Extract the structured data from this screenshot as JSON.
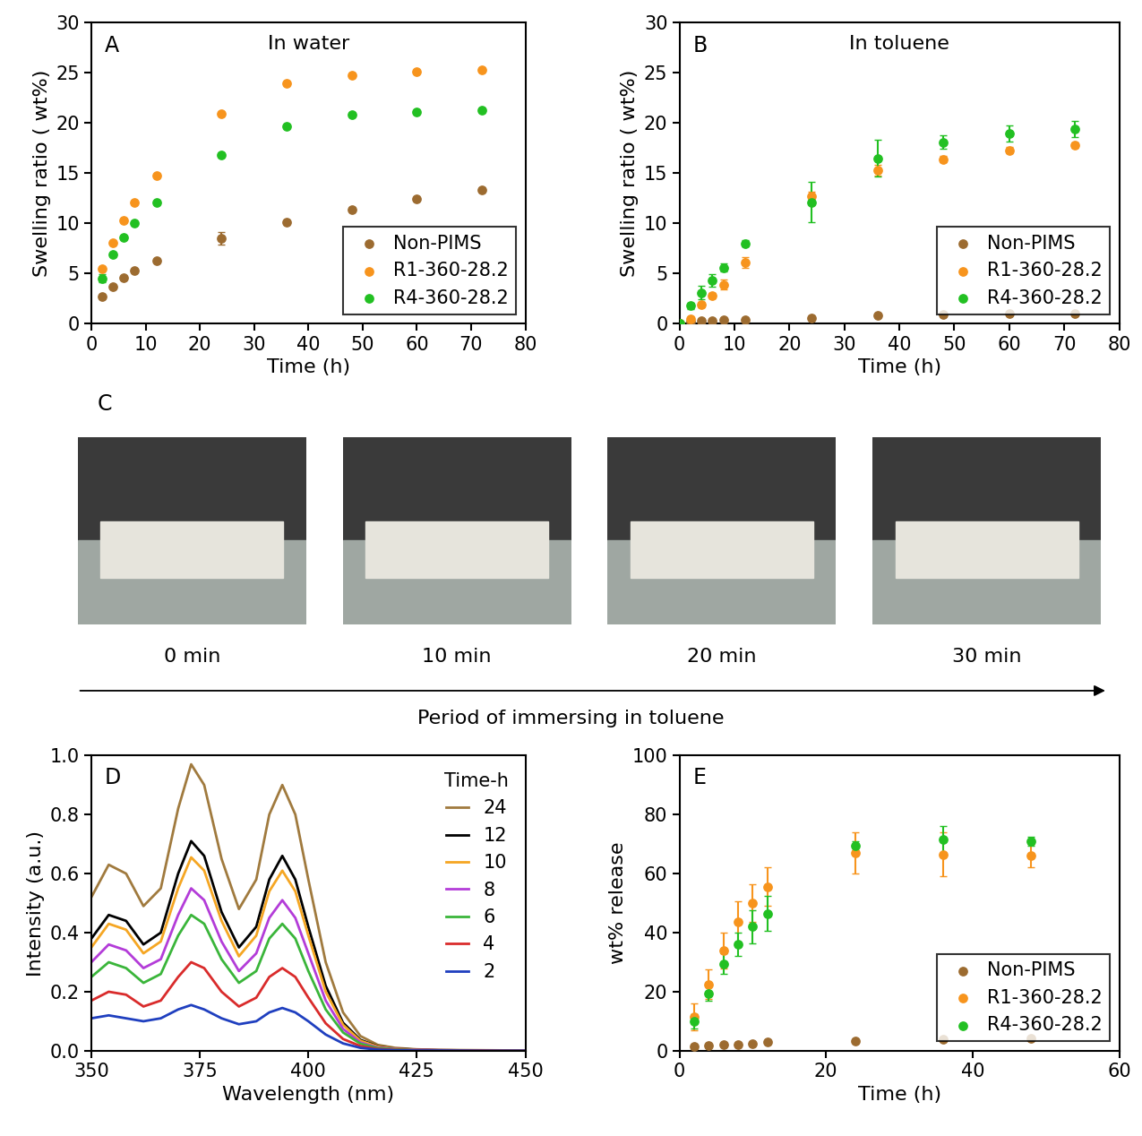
{
  "chart_data": [
    {
      "type": "scatter",
      "label": "A",
      "title": "In water",
      "x_label": "Time (h)",
      "y_label": "Swelling ratio ( wt%)",
      "x": [
        2,
        4,
        6,
        8,
        12,
        24,
        36,
        48,
        60,
        72
      ],
      "series": [
        {
          "name": "Non-PIMS",
          "color": "#9c6b30",
          "marker": "o",
          "values": [
            2.7,
            3.7,
            4.6,
            5.3,
            6.3,
            8.5,
            10.1,
            11.4,
            12.4,
            13.3
          ],
          "errors": [
            0,
            0,
            0,
            0,
            0,
            0.6,
            0,
            0,
            0,
            0
          ]
        },
        {
          "name": "R1-360-28.2",
          "color": "#f7941d",
          "marker": "o",
          "values": [
            5.5,
            8.1,
            10.3,
            12.1,
            14.8,
            20.9,
            24.0,
            24.8,
            25.1,
            25.3
          ],
          "errors": [
            0,
            0,
            0,
            0,
            0,
            0,
            0,
            0,
            0,
            0
          ]
        },
        {
          "name": "R4-360-28.2",
          "color": "#22c022",
          "marker": "o",
          "values": [
            4.5,
            6.9,
            8.6,
            10.0,
            12.1,
            16.8,
            19.7,
            20.8,
            21.1,
            21.3
          ],
          "errors": [
            0.4,
            0,
            0,
            0,
            0,
            0,
            0,
            0,
            0,
            0
          ]
        }
      ],
      "xlim": [
        0,
        80
      ],
      "xticks": [
        0,
        10,
        20,
        30,
        40,
        50,
        60,
        70,
        80
      ],
      "ylim": [
        0,
        30
      ],
      "yticks": [
        0,
        5,
        10,
        15,
        20,
        25,
        30
      ],
      "legend": "lower right"
    },
    {
      "type": "scatter",
      "label": "B",
      "title": "In toluene",
      "x_label": "Time (h)",
      "y_label": "Swelling ratio ( wt%)",
      "x": [
        0,
        2,
        4,
        6,
        8,
        12,
        24,
        36,
        48,
        60,
        72
      ],
      "series": [
        {
          "name": "Non-PIMS",
          "color": "#9c6b30",
          "marker": "o",
          "values": [
            0,
            0.2,
            0.3,
            0.3,
            0.35,
            0.4,
            0.6,
            0.8,
            0.9,
            1.0,
            1.0
          ],
          "errors": [
            0,
            0,
            0,
            0,
            0,
            0,
            0,
            0,
            0,
            0,
            0
          ]
        },
        {
          "name": "R1-360-28.2",
          "color": "#f7941d",
          "marker": "o",
          "values": [
            0,
            0.5,
            1.9,
            2.8,
            3.9,
            6.1,
            12.7,
            15.3,
            16.4,
            17.3,
            17.8
          ],
          "errors": [
            0,
            0.2,
            0.3,
            0.3,
            0.5,
            0.5,
            0.5,
            0.5,
            0.3,
            0.3,
            0.3
          ]
        },
        {
          "name": "R4-360-28.2",
          "color": "#22c022",
          "marker": "o",
          "values": [
            0,
            1.8,
            3.1,
            4.3,
            5.6,
            8.0,
            12.1,
            16.5,
            18.1,
            19.0,
            19.4
          ],
          "errors": [
            0,
            0.3,
            0.7,
            0.6,
            0.4,
            0.3,
            2.0,
            1.8,
            0.7,
            0.8,
            0.8
          ]
        }
      ],
      "xlim": [
        0,
        80
      ],
      "xticks": [
        0,
        10,
        20,
        30,
        40,
        50,
        60,
        70,
        80
      ],
      "ylim": [
        0,
        30
      ],
      "yticks": [
        0,
        5,
        10,
        15,
        20,
        25,
        30
      ],
      "legend": "lower right"
    },
    {
      "type": "line",
      "label": "D",
      "x_label": "Wavelength (nm)",
      "y_label": "Intensity (a.u.)",
      "legend_title": "Time-h",
      "x": [
        350,
        354,
        358,
        362,
        366,
        370,
        373,
        376,
        380,
        384,
        388,
        391,
        394,
        397,
        400,
        404,
        408,
        412,
        416,
        420,
        425,
        430,
        440,
        450
      ],
      "series": [
        {
          "name": "24",
          "color": "#a07a3e",
          "values": [
            0.52,
            0.63,
            0.6,
            0.49,
            0.55,
            0.82,
            0.97,
            0.9,
            0.65,
            0.48,
            0.58,
            0.8,
            0.9,
            0.8,
            0.58,
            0.3,
            0.13,
            0.05,
            0.02,
            0.01,
            0.005,
            0.003,
            0.002,
            0.001
          ]
        },
        {
          "name": "12",
          "color": "#000000",
          "values": [
            0.38,
            0.46,
            0.44,
            0.36,
            0.4,
            0.6,
            0.71,
            0.66,
            0.47,
            0.35,
            0.42,
            0.58,
            0.66,
            0.58,
            0.42,
            0.22,
            0.095,
            0.037,
            0.015,
            0.007,
            0.004,
            0.002,
            0.001,
            0.001
          ]
        },
        {
          "name": "10",
          "color": "#f5a623",
          "values": [
            0.35,
            0.43,
            0.41,
            0.33,
            0.37,
            0.55,
            0.655,
            0.61,
            0.44,
            0.32,
            0.39,
            0.54,
            0.61,
            0.54,
            0.39,
            0.2,
            0.088,
            0.034,
            0.014,
            0.007,
            0.003,
            0.002,
            0.001,
            0.001
          ]
        },
        {
          "name": "8",
          "color": "#b33cd8",
          "values": [
            0.3,
            0.36,
            0.34,
            0.28,
            0.31,
            0.46,
            0.55,
            0.51,
            0.37,
            0.27,
            0.33,
            0.45,
            0.51,
            0.45,
            0.33,
            0.17,
            0.074,
            0.028,
            0.011,
            0.006,
            0.003,
            0.002,
            0.001,
            0.001
          ]
        },
        {
          "name": "6",
          "color": "#3ab53a",
          "values": [
            0.25,
            0.3,
            0.28,
            0.23,
            0.26,
            0.39,
            0.46,
            0.43,
            0.31,
            0.23,
            0.27,
            0.38,
            0.43,
            0.38,
            0.27,
            0.14,
            0.062,
            0.024,
            0.009,
            0.005,
            0.002,
            0.001,
            0.001,
            0.0
          ]
        },
        {
          "name": "4",
          "color": "#d92b2b",
          "values": [
            0.17,
            0.2,
            0.19,
            0.15,
            0.17,
            0.25,
            0.3,
            0.28,
            0.2,
            0.15,
            0.18,
            0.25,
            0.28,
            0.25,
            0.18,
            0.093,
            0.04,
            0.016,
            0.006,
            0.003,
            0.002,
            0.001,
            0.001,
            0.0
          ]
        },
        {
          "name": "2",
          "color": "#1f3fbf",
          "values": [
            0.11,
            0.12,
            0.11,
            0.1,
            0.11,
            0.14,
            0.155,
            0.14,
            0.11,
            0.09,
            0.1,
            0.13,
            0.145,
            0.13,
            0.1,
            0.055,
            0.025,
            0.01,
            0.004,
            0.002,
            0.001,
            0.001,
            0.0,
            0.0
          ]
        }
      ],
      "xlim": [
        350,
        450
      ],
      "xticks": [
        350,
        375,
        400,
        425,
        450
      ],
      "ylim": [
        0.0,
        1.0
      ],
      "yticks": [
        0.0,
        0.2,
        0.4,
        0.6,
        0.8,
        1.0
      ],
      "legend": "upper right"
    },
    {
      "type": "scatter",
      "label": "E",
      "x_label": "Time (h)",
      "y_label": "wt% release",
      "x": [
        2,
        4,
        6,
        8,
        10,
        12,
        24,
        36,
        48
      ],
      "series": [
        {
          "name": "Non-PIMS",
          "color": "#9c6b30",
          "marker": "o",
          "values": [
            1.5,
            1.8,
            2.0,
            2.2,
            2.5,
            3.0,
            3.3,
            3.8,
            4.2
          ],
          "errors": [
            0.3,
            0.3,
            0.3,
            0.3,
            0.3,
            0.3,
            0.3,
            0.3,
            0.3
          ]
        },
        {
          "name": "R1-360-28.2",
          "color": "#f7941d",
          "marker": "o",
          "values": [
            11.5,
            22.5,
            34,
            43.5,
            50,
            55.5,
            67,
            66.5,
            66
          ],
          "errors": [
            4.5,
            5,
            6,
            7,
            6.5,
            6.5,
            7,
            7.5,
            4
          ]
        },
        {
          "name": "R4-360-28.2",
          "color": "#22c022",
          "marker": "o",
          "values": [
            10,
            19.5,
            29.5,
            36,
            42,
            46.5,
            69.5,
            71.5,
            71
          ],
          "errors": [
            2.5,
            2.5,
            3.5,
            4,
            5.5,
            6,
            1.5,
            4.5,
            1.5
          ]
        }
      ],
      "xlim": [
        0,
        60
      ],
      "xticks": [
        0,
        20,
        40,
        60
      ],
      "ylim": [
        0,
        100
      ],
      "yticks": [
        0,
        20,
        40,
        60,
        80,
        100
      ],
      "legend": "lower right"
    }
  ],
  "photo_panel": {
    "label": "C",
    "captions": [
      "0 min",
      "10 min",
      "20 min",
      "30 min"
    ],
    "arrow_label": "Period of immersing in toluene"
  }
}
